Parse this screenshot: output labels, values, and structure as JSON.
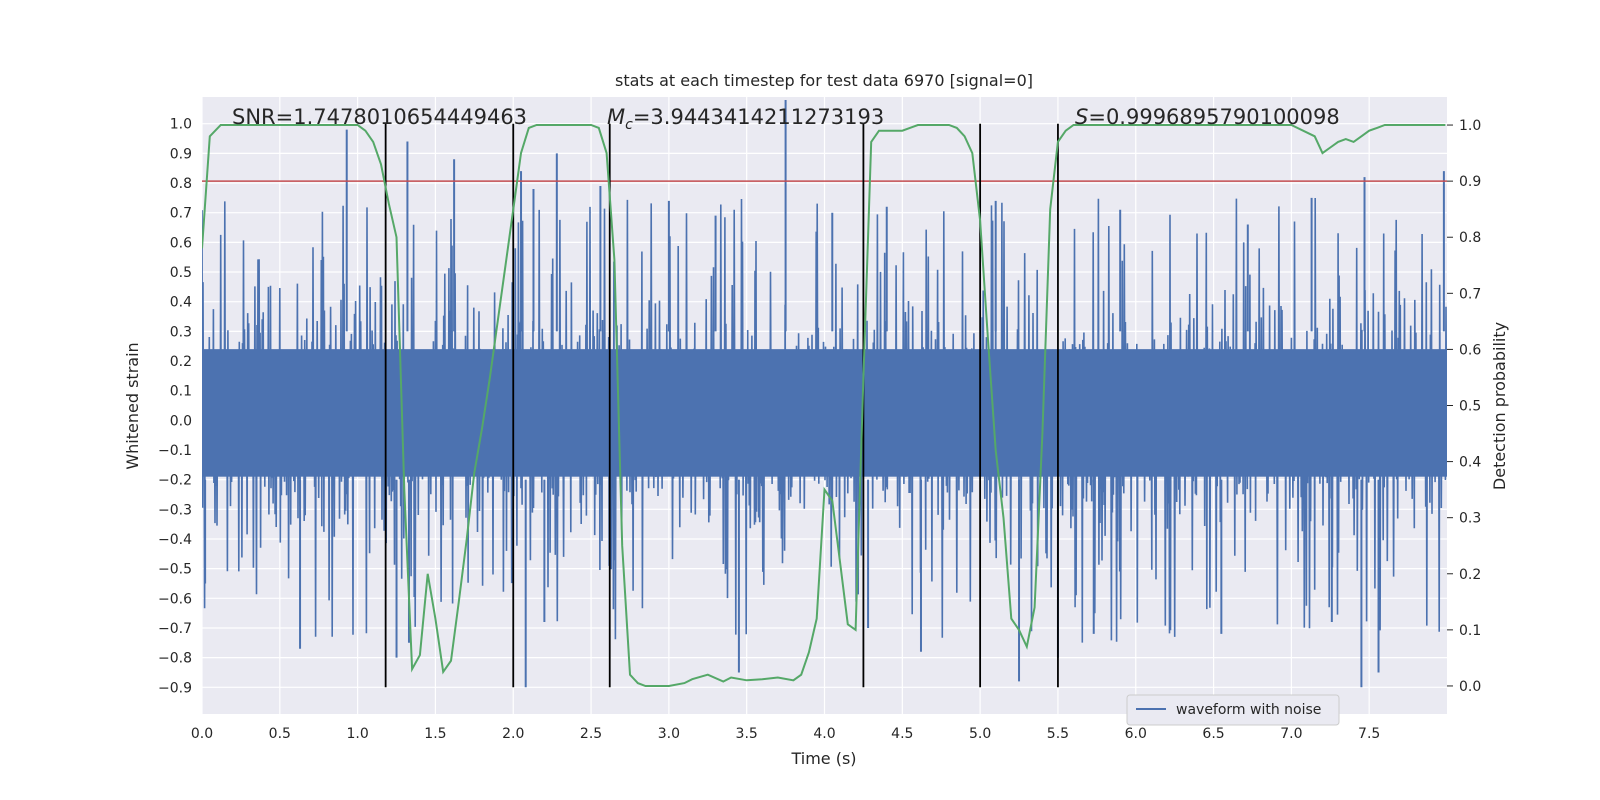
{
  "chart_data": {
    "type": "line",
    "title": "stats at each timestep for test data 6970 [signal=0]",
    "xlabel": "Time (s)",
    "ylabel": "Whitened strain",
    "y2label": "Detection probability",
    "xlim": [
      0.0,
      8.0
    ],
    "ylim": [
      -0.99,
      1.09
    ],
    "y2lim": [
      -0.05,
      1.05
    ],
    "x_ticks": [
      "0.0",
      "0.5",
      "1.0",
      "1.5",
      "2.0",
      "2.5",
      "3.0",
      "3.5",
      "4.0",
      "4.5",
      "5.0",
      "5.5",
      "6.0",
      "6.5",
      "7.0",
      "7.5"
    ],
    "y_ticks": [
      "1.0",
      "0.9",
      "0.8",
      "0.7",
      "0.6",
      "0.5",
      "0.4",
      "0.3",
      "0.2",
      "0.1",
      "0.0",
      "-0.1",
      "-0.2",
      "-0.3",
      "-0.4",
      "-0.5",
      "-0.6",
      "-0.7",
      "-0.8",
      "-0.9"
    ],
    "y2_ticks": [
      "1.0",
      "0.9",
      "0.8",
      "0.7",
      "0.6",
      "0.5",
      "0.4",
      "0.3",
      "0.2",
      "0.1",
      "0.0"
    ],
    "grid": true,
    "legend": {
      "placement": "lower-right",
      "entries": [
        "waveform with noise"
      ]
    },
    "annotations": {
      "snr": "SNR=1.7478010654449463",
      "mc_symbol": "M",
      "mc_sub": "c",
      "mc_value": "=3.9443414211273193",
      "s_symbol": "S",
      "s_value": "=0.9996895790100098"
    },
    "series": [
      {
        "name": "waveform with noise",
        "axis": "left",
        "color": "#4c72b0",
        "kind": "noise-waveform",
        "envelope_upper": 0.45,
        "envelope_lower": -0.35,
        "spike_peaks": [
          [
            0.93,
            0.98
          ],
          [
            1.32,
            0.94
          ],
          [
            1.62,
            0.88
          ],
          [
            2.05,
            0.84
          ],
          [
            2.13,
            0.78
          ],
          [
            2.28,
            0.9
          ],
          [
            2.56,
            0.79
          ],
          [
            3.0,
            0.74
          ],
          [
            3.3,
            0.69
          ],
          [
            3.75,
            1.08
          ],
          [
            4.05,
            0.7
          ],
          [
            4.4,
            0.72
          ],
          [
            5.1,
            0.74
          ],
          [
            5.9,
            0.71
          ],
          [
            6.72,
            0.66
          ],
          [
            7.13,
            0.75
          ],
          [
            7.47,
            0.82
          ],
          [
            7.98,
            0.84
          ]
        ],
        "spike_troughs": [
          [
            0.02,
            -0.55
          ],
          [
            0.63,
            -0.77
          ],
          [
            1.25,
            -0.8
          ],
          [
            1.33,
            -0.75
          ],
          [
            2.08,
            -0.9
          ],
          [
            2.2,
            -0.68
          ],
          [
            3.45,
            -0.85
          ],
          [
            4.28,
            -0.7
          ],
          [
            4.62,
            -0.78
          ],
          [
            5.25,
            -0.88
          ],
          [
            5.5,
            -0.8
          ],
          [
            5.73,
            -0.72
          ],
          [
            6.55,
            -0.72
          ],
          [
            7.26,
            -0.68
          ],
          [
            7.45,
            -0.9
          ],
          [
            7.56,
            -0.85
          ]
        ]
      },
      {
        "name": "",
        "axis": "right",
        "color": "#55a868",
        "x": [
          0.0,
          0.05,
          0.12,
          0.2,
          0.5,
          0.8,
          1.0,
          1.05,
          1.1,
          1.15,
          1.2,
          1.25,
          1.3,
          1.35,
          1.4,
          1.45,
          1.5,
          1.55,
          1.6,
          1.65,
          1.7,
          1.75,
          1.8,
          1.85,
          1.9,
          1.95,
          2.0,
          2.05,
          2.1,
          2.15,
          2.2,
          2.3,
          2.4,
          2.5,
          2.55,
          2.6,
          2.65,
          2.7,
          2.75,
          2.8,
          2.85,
          2.9,
          3.0,
          3.1,
          3.15,
          3.25,
          3.35,
          3.4,
          3.5,
          3.6,
          3.7,
          3.8,
          3.85,
          3.9,
          3.95,
          4.0,
          4.05,
          4.1,
          4.15,
          4.2,
          4.25,
          4.3,
          4.35,
          4.4,
          4.5,
          4.6,
          4.7,
          4.8,
          4.85,
          4.9,
          4.95,
          5.0,
          5.05,
          5.1,
          5.15,
          5.2,
          5.25,
          5.3,
          5.35,
          5.4,
          5.45,
          5.5,
          5.55,
          5.6,
          5.65,
          5.7,
          5.8,
          6.0,
          6.5,
          7.0,
          7.15,
          7.2,
          7.25,
          7.3,
          7.35,
          7.4,
          7.45,
          7.5,
          7.55,
          7.6,
          7.7,
          7.8,
          7.99
        ],
        "y": [
          0.78,
          0.98,
          1.0,
          1.0,
          1.0,
          1.0,
          1.0,
          0.99,
          0.97,
          0.93,
          0.86,
          0.8,
          0.35,
          0.03,
          0.055,
          0.2,
          0.12,
          0.025,
          0.045,
          0.15,
          0.26,
          0.38,
          0.46,
          0.55,
          0.65,
          0.75,
          0.85,
          0.95,
          0.995,
          1.0,
          1.0,
          1.0,
          1.0,
          1.0,
          0.995,
          0.95,
          0.76,
          0.25,
          0.02,
          0.005,
          0.0,
          0.0,
          0.0,
          0.005,
          0.012,
          0.02,
          0.008,
          0.015,
          0.01,
          0.012,
          0.015,
          0.01,
          0.02,
          0.06,
          0.12,
          0.35,
          0.33,
          0.22,
          0.11,
          0.1,
          0.55,
          0.97,
          0.99,
          0.99,
          0.99,
          1.0,
          1.0,
          1.0,
          0.995,
          0.98,
          0.95,
          0.83,
          0.62,
          0.42,
          0.3,
          0.12,
          0.1,
          0.07,
          0.14,
          0.45,
          0.85,
          0.97,
          0.99,
          1.0,
          1.0,
          1.0,
          1.0,
          1.0,
          1.0,
          1.0,
          0.98,
          0.95,
          0.96,
          0.97,
          0.975,
          0.97,
          0.98,
          0.99,
          0.995,
          1.0,
          1.0,
          1.0,
          1.0
        ]
      }
    ],
    "threshold": {
      "axis": "right",
      "value": 0.9,
      "color": "#c44e52"
    },
    "vertical_markers": {
      "color": "#000000",
      "x": [
        1.18,
        2.0,
        2.62,
        4.25,
        5.0,
        5.5
      ],
      "y_range": [
        -0.9,
        1.0
      ]
    }
  }
}
